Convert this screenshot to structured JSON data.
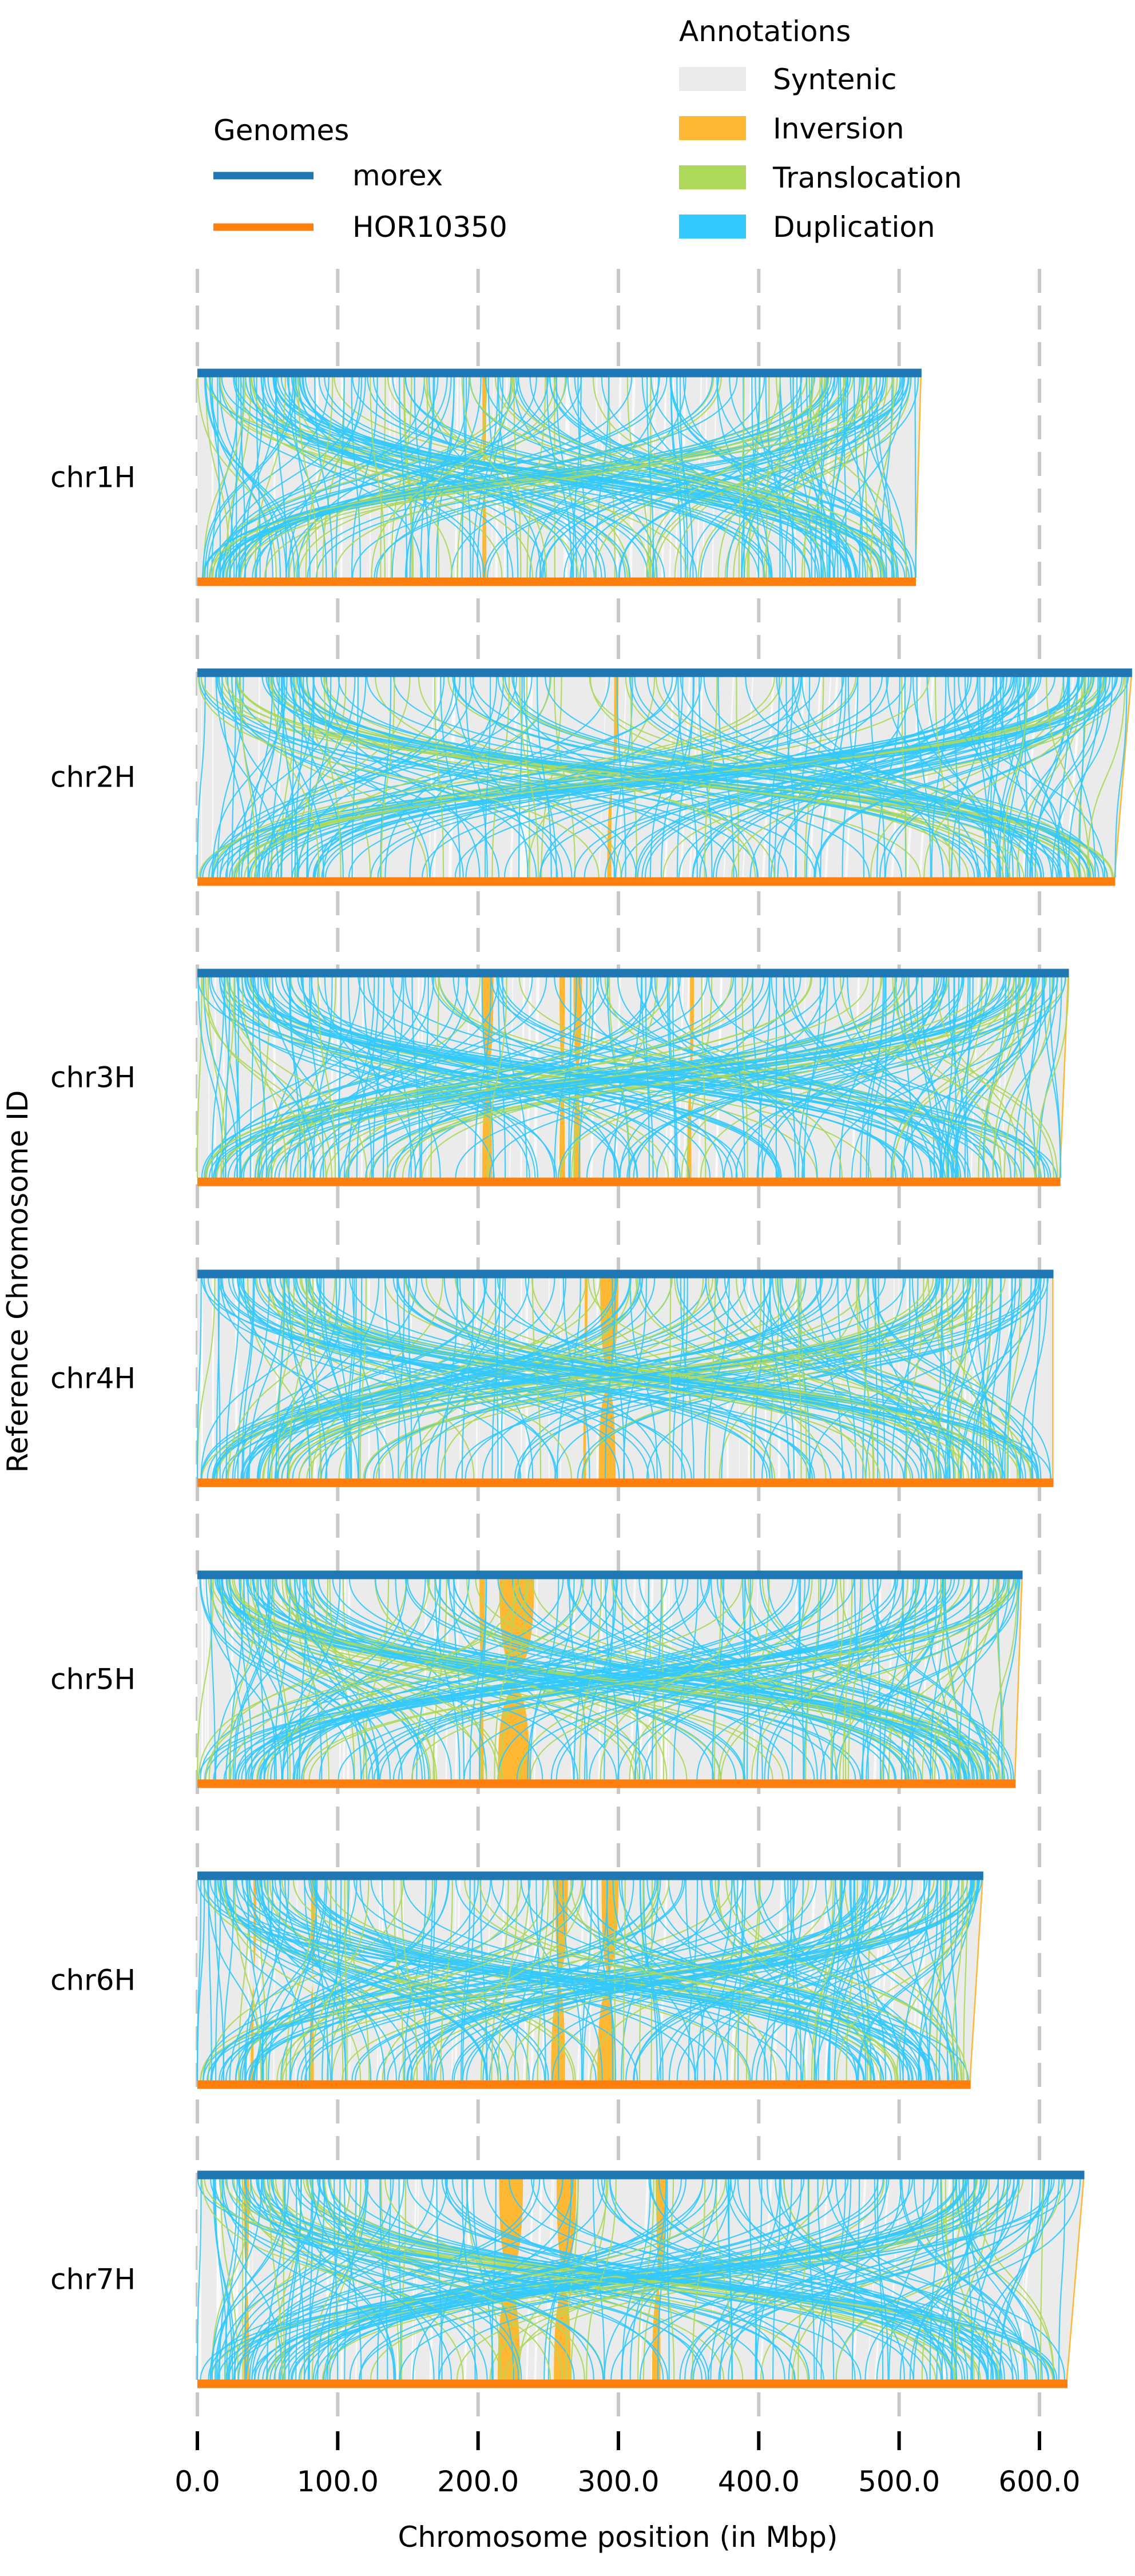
{
  "chart_data": {
    "type": "synteny",
    "xlabel": "Chromosome position (in Mbp)",
    "ylabel": "Reference Chromosome ID",
    "xlim": [
      0,
      660
    ],
    "xticks": [
      "0.0",
      "100.0",
      "200.0",
      "300.0",
      "400.0",
      "500.0",
      "600.0"
    ],
    "xtick_values": [
      0,
      100,
      200,
      300,
      400,
      500,
      600
    ],
    "grid": "vertical dashed",
    "legend_genomes": {
      "title": "Genomes",
      "placement": "top-left",
      "entries": [
        {
          "label": "morex",
          "color": "#1f77b4"
        },
        {
          "label": "HOR10350",
          "color": "#ff7f0e"
        }
      ]
    },
    "legend_annotations": {
      "title": "Annotations",
      "placement": "top-right",
      "entries": [
        {
          "label": "Syntenic",
          "color": "#ebebeb"
        },
        {
          "label": "Inversion",
          "color": "#ffb833"
        },
        {
          "label": "Translocation",
          "color": "#add85a"
        },
        {
          "label": "Duplication",
          "color": "#33c9fc"
        }
      ]
    },
    "chromosomes": [
      {
        "name": "chr1H",
        "ref_length": 516,
        "qry_length": 512,
        "inversions": [
          [
            203,
            206,
            203,
            206
          ]
        ]
      },
      {
        "name": "chr2H",
        "ref_length": 666,
        "qry_length": 654,
        "inversions": [
          [
            297,
            300,
            292,
            295
          ]
        ]
      },
      {
        "name": "chr3H",
        "ref_length": 621,
        "qry_length": 615,
        "inversions": [
          [
            203,
            211,
            203,
            210
          ],
          [
            258,
            262,
            258,
            262
          ],
          [
            268,
            274,
            268,
            273
          ],
          [
            351,
            354,
            349,
            352
          ]
        ]
      },
      {
        "name": "chr4H",
        "ref_length": 610,
        "qry_length": 610,
        "inversions": [
          [
            287,
            300,
            286,
            298
          ],
          [
            276,
            278,
            275,
            277
          ]
        ]
      },
      {
        "name": "chr5H",
        "ref_length": 588,
        "qry_length": 583,
        "inversions": [
          [
            215,
            240,
            214,
            237
          ],
          [
            201,
            205,
            201,
            204
          ]
        ]
      },
      {
        "name": "chr6H",
        "ref_length": 560,
        "qry_length": 551,
        "inversions": [
          [
            255,
            264,
            252,
            262
          ],
          [
            288,
            300,
            285,
            297
          ],
          [
            81,
            84,
            80,
            83
          ],
          [
            40,
            42,
            38,
            40
          ]
        ]
      },
      {
        "name": "chr7H",
        "ref_length": 632,
        "qry_length": 620,
        "inversions": [
          [
            215,
            232,
            214,
            230
          ],
          [
            256,
            270,
            254,
            266
          ],
          [
            327,
            334,
            324,
            330
          ],
          [
            33,
            37,
            33,
            37
          ]
        ]
      }
    ]
  }
}
